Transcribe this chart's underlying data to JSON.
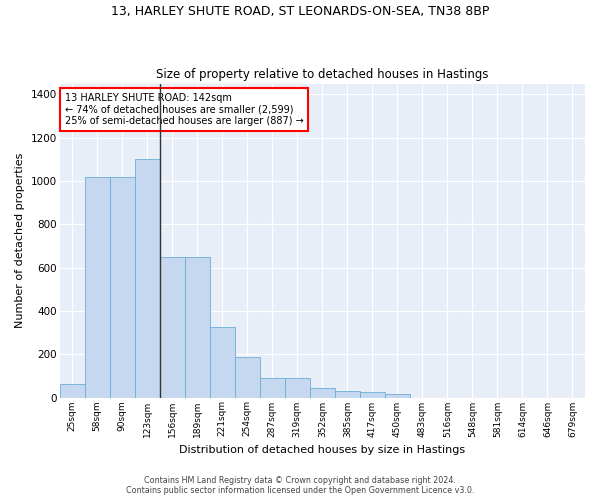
{
  "title1": "13, HARLEY SHUTE ROAD, ST LEONARDS-ON-SEA, TN38 8BP",
  "title2": "Size of property relative to detached houses in Hastings",
  "xlabel": "Distribution of detached houses by size in Hastings",
  "ylabel": "Number of detached properties",
  "categories": [
    "25sqm",
    "58sqm",
    "90sqm",
    "123sqm",
    "156sqm",
    "189sqm",
    "221sqm",
    "254sqm",
    "287sqm",
    "319sqm",
    "352sqm",
    "385sqm",
    "417sqm",
    "450sqm",
    "483sqm",
    "516sqm",
    "548sqm",
    "581sqm",
    "614sqm",
    "646sqm",
    "679sqm"
  ],
  "values": [
    62,
    1020,
    1020,
    1100,
    650,
    650,
    325,
    185,
    88,
    88,
    42,
    28,
    25,
    18,
    0,
    0,
    0,
    0,
    0,
    0,
    0
  ],
  "bar_color": "#c5d8f0",
  "bar_edge_color": "#6baed6",
  "annotation_text1": "13 HARLEY SHUTE ROAD: 142sqm",
  "annotation_text2": "← 74% of detached houses are smaller (2,599)",
  "annotation_text3": "25% of semi-detached houses are larger (887) →",
  "vline_color": "#333333",
  "background_color": "#e8eef8",
  "grid_color": "#ffffff",
  "footer1": "Contains HM Land Registry data © Crown copyright and database right 2024.",
  "footer2": "Contains public sector information licensed under the Open Government Licence v3.0.",
  "ylim": [
    0,
    1450
  ],
  "yticks": [
    0,
    200,
    400,
    600,
    800,
    1000,
    1200,
    1400
  ]
}
